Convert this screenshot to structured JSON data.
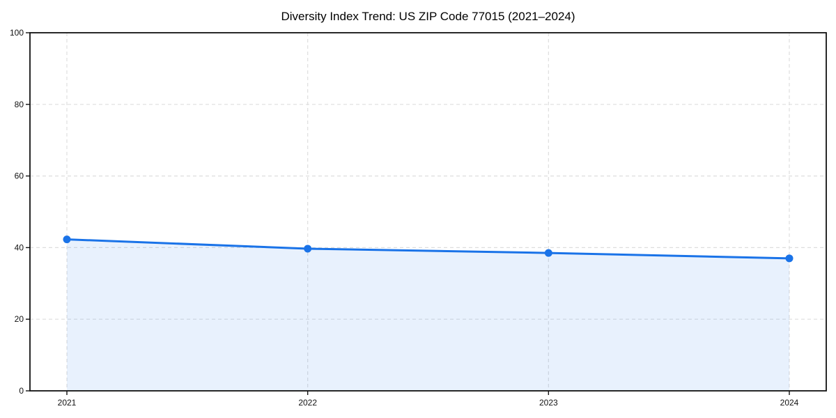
{
  "chart_data": {
    "type": "area",
    "title": "Diversity Index Trend: US ZIP Code 77015 (2021–2024)",
    "x": [
      "2021",
      "2022",
      "2023",
      "2024"
    ],
    "series": [
      {
        "name": "Diversity Index",
        "values": [
          42.3,
          39.7,
          38.5,
          37.0
        ]
      }
    ],
    "xlabel": "",
    "ylabel": "",
    "ylim": [
      0,
      100
    ],
    "yticks": [
      0,
      20,
      40,
      60,
      80,
      100
    ],
    "grid": "dashed",
    "legend": "none",
    "colors": {
      "line": "#1a73e8",
      "marker": "#1a73e8",
      "fill": "rgba(26,115,232,0.10)",
      "grid": "#dedede",
      "spine": "#111111",
      "tick_text": "#111111",
      "title_text": "#000000",
      "background": "#ffffff"
    }
  }
}
